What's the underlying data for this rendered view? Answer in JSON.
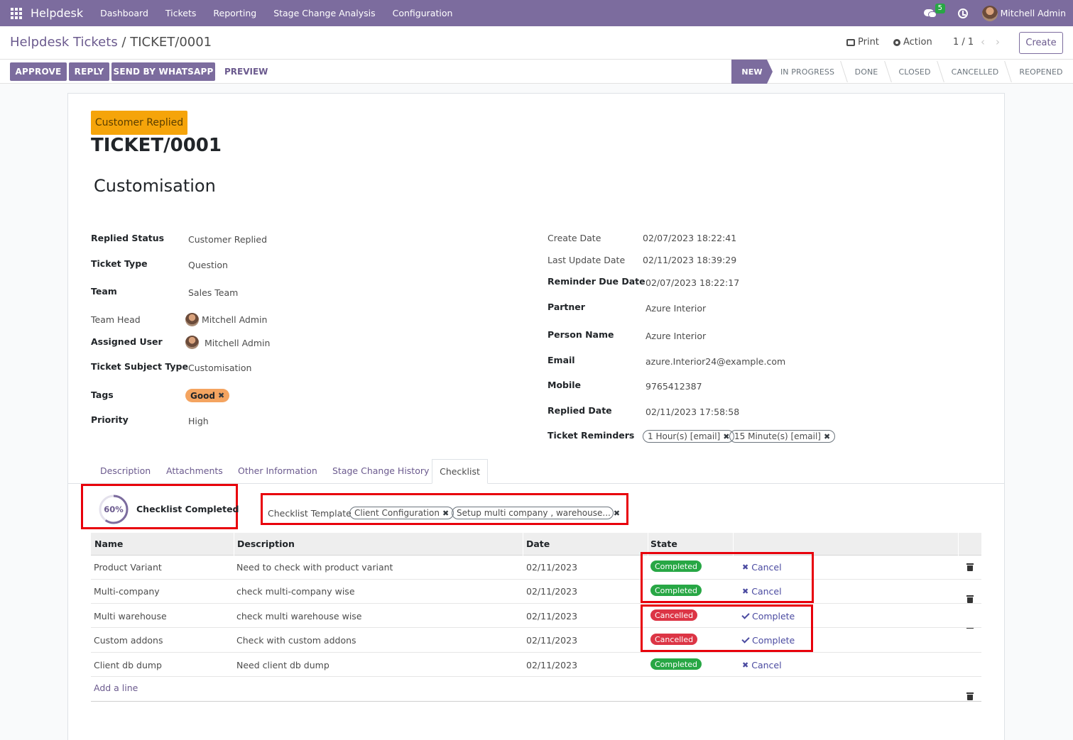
{
  "topnav": {
    "brand": "Helpdesk",
    "menu": [
      "Dashboard",
      "Tickets",
      "Reporting",
      "Stage Change Analysis",
      "Configuration"
    ],
    "message_count": "5",
    "user": "Mitchell Admin"
  },
  "control": {
    "breadcrumb_parent": "Helpdesk Tickets",
    "breadcrumb_sep": " / ",
    "breadcrumb_current": "TICKET/0001",
    "print_label": "Print",
    "action_label": "Action",
    "pager": "1 / 1",
    "create_label": "Create"
  },
  "actions": {
    "approve": "APPROVE",
    "reply": "REPLY",
    "send_whatsapp": "SEND BY WHATSAPP",
    "preview": "PREVIEW"
  },
  "stages": [
    "NEW",
    "IN PROGRESS",
    "DONE",
    "CLOSED",
    "CANCELLED",
    "REOPENED"
  ],
  "active_stage": "NEW",
  "ticket": {
    "replied_badge": "Customer Replied",
    "number": "TICKET/0001",
    "subject": "Customisation"
  },
  "left_fields": {
    "replied_status": {
      "label": "Replied Status",
      "value": "Customer Replied"
    },
    "ticket_type": {
      "label": "Ticket Type",
      "value": "Question"
    },
    "team": {
      "label": "Team",
      "value": "Sales Team"
    },
    "team_head": {
      "label": "Team Head",
      "value": "Mitchell Admin"
    },
    "assigned_user": {
      "label": "Assigned User",
      "value": "Mitchell Admin"
    },
    "subject_type": {
      "label": "Ticket Subject Type",
      "value": "Customisation"
    },
    "tags": {
      "label": "Tags",
      "value": "Good"
    },
    "priority": {
      "label": "Priority",
      "value": "High"
    }
  },
  "right_fields": {
    "create_date": {
      "label": "Create Date",
      "value": "02/07/2023 18:22:41"
    },
    "last_update": {
      "label": "Last Update Date",
      "value": "02/11/2023 18:39:29"
    },
    "reminder_due": {
      "label": "Reminder Due Date",
      "value": "02/07/2023 18:22:17"
    },
    "partner": {
      "label": "Partner",
      "value": "Azure Interior"
    },
    "person_name": {
      "label": "Person Name",
      "value": "Azure Interior"
    },
    "email": {
      "label": "Email",
      "value": "azure.Interior24@example.com"
    },
    "mobile": {
      "label": "Mobile",
      "value": "9765412387"
    },
    "replied_date": {
      "label": "Replied Date",
      "value": "02/11/2023 17:58:58"
    },
    "reminders": {
      "label": "Ticket Reminders",
      "values": [
        "1 Hour(s) [email]",
        "15 Minute(s) [email]"
      ]
    }
  },
  "tabs": [
    "Description",
    "Attachments",
    "Other Information",
    "Stage Change History",
    "Checklist"
  ],
  "checklist": {
    "progress_percent": 60,
    "progress_label": "60%",
    "completed_label": "Checklist Completed",
    "template_label": "Checklist Template",
    "templates": [
      "Client Configuration",
      "Setup multi company , warehouse..."
    ],
    "columns": [
      "Name",
      "Description",
      "Date",
      "State"
    ],
    "rows": [
      {
        "name": "Product Variant",
        "description": "Need to check with product variant",
        "date": "02/11/2023",
        "state": "Completed",
        "action": "Cancel"
      },
      {
        "name": "Multi-company",
        "description": "check multi-company wise",
        "date": "02/11/2023",
        "state": "Completed",
        "action": "Cancel"
      },
      {
        "name": "Multi warehouse",
        "description": "check multi warehouse wise",
        "date": "02/11/2023",
        "state": "Cancelled",
        "action": "Complete"
      },
      {
        "name": "Custom addons",
        "description": "Check with custom addons",
        "date": "02/11/2023",
        "state": "Cancelled",
        "action": "Complete"
      },
      {
        "name": "Client db dump",
        "description": "Need client db dump",
        "date": "02/11/2023",
        "state": "Completed",
        "action": "Cancel"
      }
    ],
    "add_line": "Add a line"
  },
  "colors": {
    "primary": "#7c6c9e",
    "completed": "#28a745",
    "cancelled": "#dc3545",
    "replied_badge": "#f5a40a",
    "highlight_box": "#e8000b"
  }
}
